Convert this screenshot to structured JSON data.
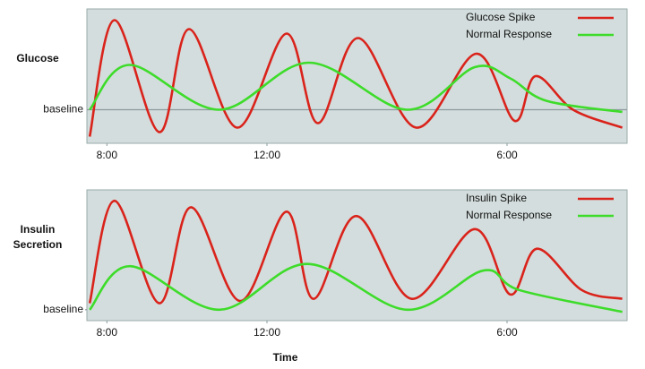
{
  "chart_data": [
    {
      "type": "line",
      "ylabel": "Glucose",
      "xlim": [
        7.5,
        21
      ],
      "ylim": [
        -1.5,
        4.5
      ],
      "xticks": [
        {
          "value": 8,
          "label": "8:00"
        },
        {
          "value": 12,
          "label": "12:00"
        },
        {
          "value": 18,
          "label": "6:00"
        }
      ],
      "yticks": [
        {
          "value": 0,
          "label": "baseline"
        }
      ],
      "grid": true,
      "legend": "upper right",
      "series": [
        {
          "name": "Glucose Spike",
          "color": "#d9231b",
          "x": [
            7.57,
            8.19,
            9.31,
            10.05,
            11.26,
            12.49,
            13.27,
            14.28,
            15.73,
            17.23,
            18.19,
            18.71,
            19.65,
            20.88
          ],
          "values": [
            -1.2,
            4,
            -1,
            3.6,
            -0.8,
            3.4,
            -0.6,
            3.2,
            -0.8,
            2.5,
            -0.5,
            1.5,
            0,
            -0.8
          ]
        },
        {
          "name": "Normal Response",
          "color": "#3ddc2a",
          "x": [
            7.57,
            8.57,
            10.81,
            13.05,
            15.5,
            17.19,
            18.08,
            18.98,
            20.88
          ],
          "values": [
            0,
            2,
            0,
            2.1,
            0,
            1.9,
            1.4,
            0.4,
            -0.1
          ]
        }
      ]
    },
    {
      "type": "line",
      "ylabel": "Insulin Secretion",
      "xlabel": "Time",
      "xlim": [
        7.5,
        21
      ],
      "ylim": [
        -0.5,
        5.5
      ],
      "xticks": [
        {
          "value": 8,
          "label": "8:00"
        },
        {
          "value": 12,
          "label": "12:00"
        },
        {
          "value": 18,
          "label": "6:00"
        }
      ],
      "yticks": [
        {
          "value": 0,
          "label": "baseline"
        }
      ],
      "grid": false,
      "legend": "upper right",
      "series": [
        {
          "name": "Insulin Spike",
          "color": "#d9231b",
          "x": [
            7.57,
            8.19,
            9.31,
            10.1,
            11.33,
            12.49,
            13.16,
            14.23,
            15.62,
            17.19,
            18.08,
            18.75,
            19.87,
            20.88
          ],
          "values": [
            0.3,
            5,
            0.3,
            4.7,
            0.4,
            4.5,
            0.5,
            4.3,
            0.5,
            3.7,
            0.7,
            2.8,
            0.9,
            0.5
          ]
        },
        {
          "name": "Normal Response",
          "color": "#3ddc2a",
          "x": [
            7.57,
            8.57,
            10.81,
            13.0,
            15.5,
            17.41,
            18.31,
            20.88
          ],
          "values": [
            0,
            2,
            0,
            2.1,
            0,
            1.8,
            0.9,
            -0.1
          ]
        }
      ]
    }
  ]
}
